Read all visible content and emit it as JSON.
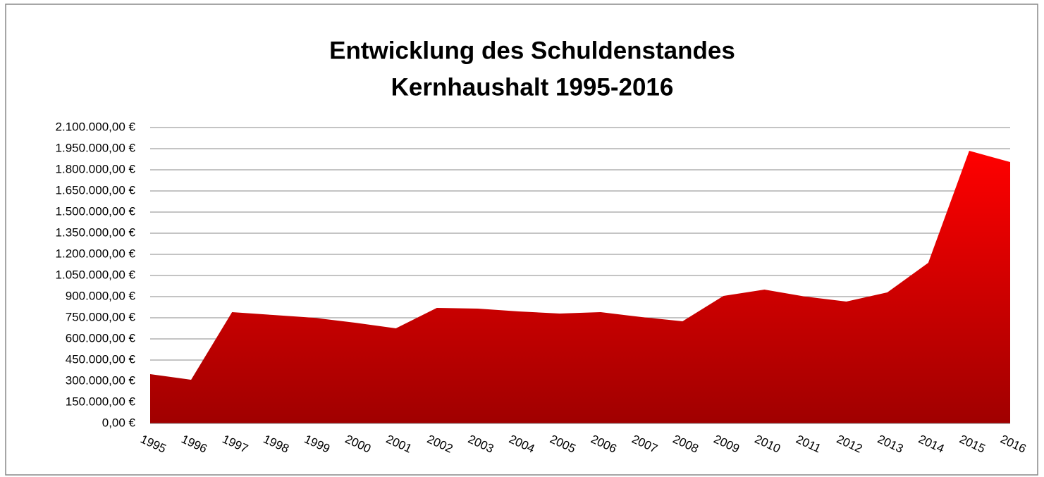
{
  "chart_data": {
    "type": "area",
    "title": "Entwicklung des Schuldenstandes",
    "subtitle": "Kernhaushalt 1995-2016",
    "categories": [
      "1995",
      "1996",
      "1997",
      "1998",
      "1999",
      "2000",
      "2001",
      "2002",
      "2003",
      "2004",
      "2005",
      "2006",
      "2007",
      "2008",
      "2009",
      "2010",
      "2011",
      "2012",
      "2013",
      "2014",
      "2015",
      "2016"
    ],
    "values": [
      350000,
      310000,
      790000,
      770000,
      750000,
      715000,
      675000,
      820000,
      815000,
      795000,
      780000,
      790000,
      755000,
      725000,
      905000,
      950000,
      900000,
      865000,
      930000,
      1140000,
      1935000,
      1855000
    ],
    "color": "#ff0000",
    "ylim": [
      0,
      2100000
    ],
    "yticks": [
      {
        "value": 0,
        "label": "0,00 €"
      },
      {
        "value": 150000,
        "label": "150.000,00 €"
      },
      {
        "value": 300000,
        "label": "300.000,00 €"
      },
      {
        "value": 450000,
        "label": "450.000,00 €"
      },
      {
        "value": 600000,
        "label": "600.000,00 €"
      },
      {
        "value": 750000,
        "label": "750.000,00 €"
      },
      {
        "value": 900000,
        "label": "900.000,00 €"
      },
      {
        "value": 1050000,
        "label": "1.050.000,00 €"
      },
      {
        "value": 1200000,
        "label": "1.200.000,00 €"
      },
      {
        "value": 1350000,
        "label": "1.350.000,00 €"
      },
      {
        "value": 1500000,
        "label": "1.500.000,00 €"
      },
      {
        "value": 1650000,
        "label": "1.650.000,00 €"
      },
      {
        "value": 1800000,
        "label": "1.800.000,00 €"
      },
      {
        "value": 1950000,
        "label": "1.950.000,00 €"
      },
      {
        "value": 2100000,
        "label": "2.100.000,00 €"
      }
    ],
    "grid": true
  }
}
